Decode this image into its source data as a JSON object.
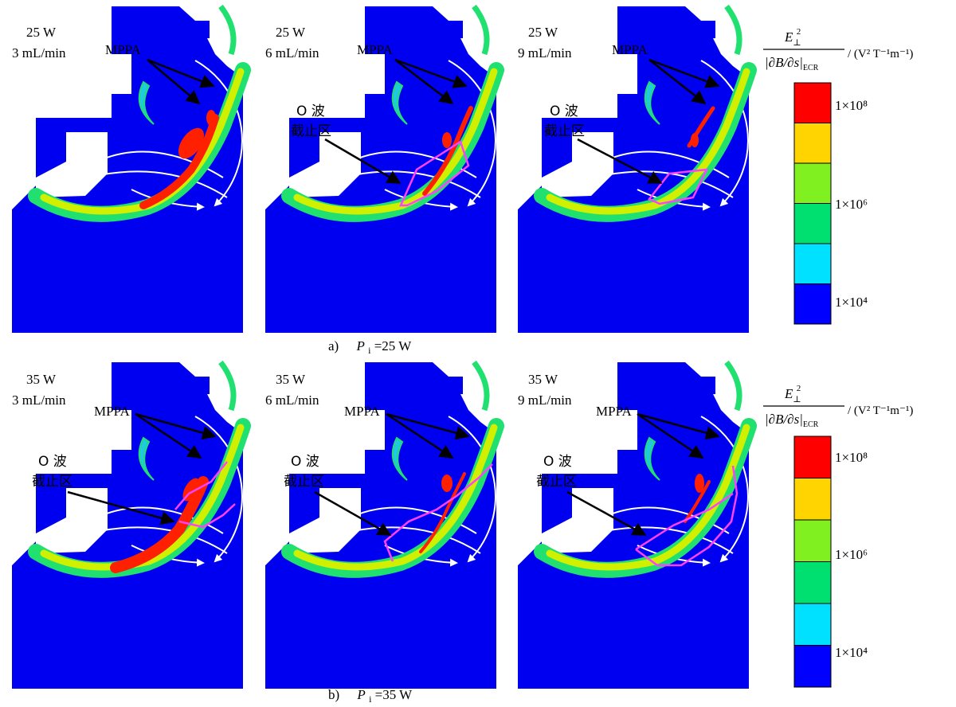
{
  "panels": [
    {
      "power": "25 W",
      "flow": "3 mL/min",
      "mppa": "MPPA",
      "cutoff": null
    },
    {
      "power": "25 W",
      "flow": "6 mL/min",
      "mppa": "MPPA",
      "cutoff": {
        "line1": "O 波",
        "line2": "截止区"
      }
    },
    {
      "power": "25 W",
      "flow": "9 mL/min",
      "mppa": "MPPA",
      "cutoff": {
        "line1": "O 波",
        "line2": "截止区"
      }
    },
    {
      "power": "35 W",
      "flow": "3 mL/min",
      "mppa": "MPPA",
      "cutoff": {
        "line1": "O 波",
        "line2": "截止区"
      }
    },
    {
      "power": "35 W",
      "flow": "6 mL/min",
      "mppa": "MPPA",
      "cutoff": {
        "line1": "O 波",
        "line2": "截止区"
      }
    },
    {
      "power": "35 W",
      "flow": "9 mL/min",
      "mppa": "MPPA",
      "cutoff": {
        "line1": "O 波",
        "line2": "截止区"
      }
    }
  ],
  "captions": {
    "a": {
      "label": "a)",
      "var": "P",
      "sub": "i",
      "value": "=25 W"
    },
    "b": {
      "label": "b)",
      "var": "P",
      "sub": "i",
      "value": "=35 W"
    }
  },
  "colorbar": {
    "num_e": "E",
    "num_sub": "⊥",
    "num_sup": "2",
    "den": "|∂B/∂s|",
    "den_sub": "ECR",
    "unit": "/ (V² T⁻¹m⁻¹)",
    "ticks": [
      "1×10⁸",
      "1×10⁶",
      "1×10⁴"
    ],
    "colors": [
      "#0000ff",
      "#00e0ff",
      "#00e070",
      "#80f020",
      "#ffd400",
      "#ff0000"
    ]
  },
  "colors": {
    "background": "#0000f0",
    "band_outer": "#20e070",
    "band_mid": "#d0f000",
    "band_hot": "#ff2000",
    "cyan": "#20c8e0",
    "cutoff_line": "#ff40ff",
    "field_line": "#ffffff"
  }
}
